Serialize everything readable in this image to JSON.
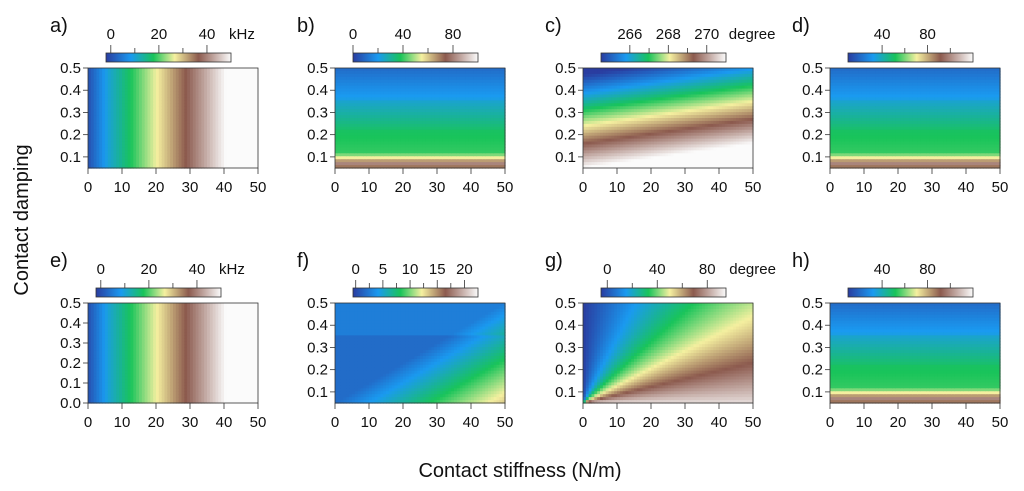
{
  "figure": {
    "ylabel": "Contact damping",
    "xlabel": "Contact stiffness (N/m)"
  },
  "palette": {
    "stops": [
      {
        "t": 0.0,
        "color": "#2a3da0"
      },
      {
        "t": 0.2,
        "color": "#1a9af0"
      },
      {
        "t": 0.38,
        "color": "#19c45a"
      },
      {
        "t": 0.55,
        "color": "#f5f0a0"
      },
      {
        "t": 0.74,
        "color": "#8c5a4e"
      },
      {
        "t": 1.0,
        "color": "#fbfbfb"
      }
    ]
  },
  "chart_data": [
    {
      "id": "a",
      "letter": "a)",
      "type": "heatmap",
      "x_ticks": [
        "0",
        "10",
        "20",
        "30",
        "40",
        "50"
      ],
      "xlim": [
        0,
        50
      ],
      "y_ticks": [
        "0.1",
        "0.2",
        "0.3",
        "0.4",
        "0.5"
      ],
      "ylim": [
        0.05,
        0.5
      ],
      "colorbar": {
        "ticks": [
          "0",
          "20",
          "40"
        ],
        "unit": "kHz",
        "range": [
          -2,
          50
        ],
        "tick_values": [
          0,
          20,
          40
        ]
      },
      "field": "freq_x"
    },
    {
      "id": "b",
      "letter": "b)",
      "type": "heatmap",
      "x_ticks": [
        "0",
        "10",
        "20",
        "30",
        "40",
        "50"
      ],
      "xlim": [
        0,
        50
      ],
      "y_ticks": [
        "0.1",
        "0.2",
        "0.3",
        "0.4",
        "0.5"
      ],
      "ylim": [
        0.05,
        0.5
      ],
      "colorbar": {
        "ticks": [
          "0",
          "40",
          "80"
        ],
        "unit": "",
        "range": [
          0,
          100
        ],
        "tick_values": [
          0,
          40,
          80
        ]
      },
      "field": "damp_y_band"
    },
    {
      "id": "c",
      "letter": "c)",
      "type": "heatmap",
      "x_ticks": [
        "0",
        "10",
        "20",
        "30",
        "40",
        "50"
      ],
      "xlim": [
        0,
        50
      ],
      "y_ticks": [
        "0.1",
        "0.2",
        "0.3",
        "0.4",
        "0.5"
      ],
      "ylim": [
        0.05,
        0.5
      ],
      "colorbar": {
        "ticks": [
          "266",
          "268",
          "270"
        ],
        "unit": "degree",
        "range": [
          264.5,
          271
        ],
        "tick_values": [
          266,
          268,
          270
        ]
      },
      "field": "phase_tilted"
    },
    {
      "id": "d",
      "letter": "d)",
      "type": "heatmap",
      "x_ticks": [
        "0",
        "10",
        "20",
        "30",
        "40",
        "50"
      ],
      "xlim": [
        0,
        50
      ],
      "y_ticks": [
        "0.1",
        "0.2",
        "0.3",
        "0.4",
        "0.5"
      ],
      "ylim": [
        0.05,
        0.5
      ],
      "colorbar": {
        "ticks": [
          "40",
          "80"
        ],
        "unit": "",
        "range": [
          10,
          120
        ],
        "tick_values": [
          40,
          80
        ]
      },
      "field": "damp_y_band"
    },
    {
      "id": "e",
      "letter": "e)",
      "type": "heatmap",
      "x_ticks": [
        "0",
        "10",
        "20",
        "30",
        "40",
        "50"
      ],
      "xlim": [
        0,
        50
      ],
      "y_ticks": [
        "0.0",
        "0.1",
        "0.2",
        "0.3",
        "0.4",
        "0.5"
      ],
      "ylim": [
        0.0,
        0.5
      ],
      "colorbar": {
        "ticks": [
          "0",
          "20",
          "40"
        ],
        "unit": "kHz",
        "range": [
          -2,
          50
        ],
        "tick_values": [
          0,
          20,
          40
        ]
      },
      "field": "freq_x"
    },
    {
      "id": "f",
      "letter": "f)",
      "type": "heatmap",
      "x_ticks": [
        "0",
        "10",
        "20",
        "30",
        "40",
        "50"
      ],
      "xlim": [
        0,
        50
      ],
      "y_ticks": [
        "0.1",
        "0.2",
        "0.3",
        "0.4",
        "0.5"
      ],
      "ylim": [
        0.05,
        0.5
      ],
      "colorbar": {
        "ticks": [
          "0",
          "5",
          "10",
          "15",
          "20"
        ],
        "unit": "",
        "range": [
          -0.5,
          22.5
        ],
        "tick_values": [
          0,
          5,
          10,
          15,
          20
        ]
      },
      "field": "ratio_low"
    },
    {
      "id": "g",
      "letter": "g)",
      "type": "heatmap",
      "x_ticks": [
        "0",
        "10",
        "20",
        "30",
        "40",
        "50"
      ],
      "xlim": [
        0,
        50
      ],
      "y_ticks": [
        "0.1",
        "0.2",
        "0.3",
        "0.4",
        "0.5"
      ],
      "ylim": [
        0.05,
        0.5
      ],
      "colorbar": {
        "ticks": [
          "0",
          "40",
          "80"
        ],
        "unit": "degree",
        "range": [
          -5,
          95
        ],
        "tick_values": [
          0,
          40,
          80
        ]
      },
      "field": "phase_fan"
    },
    {
      "id": "h",
      "letter": "h)",
      "type": "heatmap",
      "x_ticks": [
        "0",
        "10",
        "20",
        "30",
        "40",
        "50"
      ],
      "xlim": [
        0,
        50
      ],
      "y_ticks": [
        "0.1",
        "0.2",
        "0.3",
        "0.4",
        "0.5"
      ],
      "ylim": [
        0.05,
        0.5
      ],
      "colorbar": {
        "ticks": [
          "40",
          "80"
        ],
        "unit": "",
        "range": [
          10,
          120
        ],
        "tick_values": [
          40,
          80
        ]
      },
      "field": "damp_y_band"
    }
  ]
}
